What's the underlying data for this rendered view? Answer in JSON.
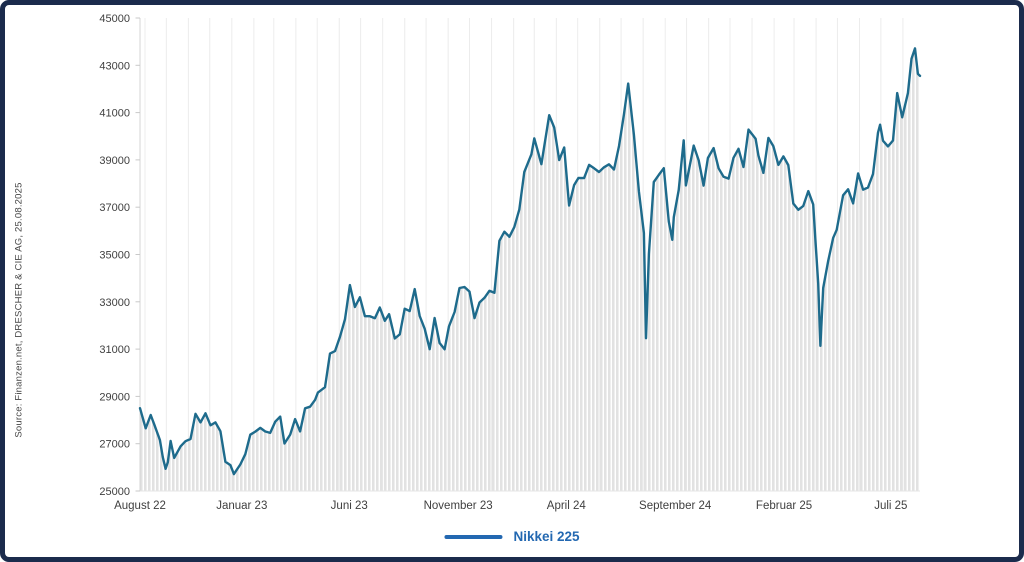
{
  "source_note": "Source: Finanzen.net, DRESCHER & CIE AG, 25.08.2025",
  "legend": {
    "label": "Nikkei 225",
    "position": "bottom-center",
    "swatch_color": "#2368b1",
    "text_color": "#2368b1"
  },
  "colors": {
    "line": "#1e6b8c",
    "area_bars": "#e2e2e2",
    "grid": "#ececec",
    "axis": "#d4d4d4",
    "tick": "#c9c9c9",
    "baseline": "#e6e6e6",
    "tick_text": "#3f3f3f",
    "border": "#1b2b4c",
    "background": "#ffffff"
  },
  "chart_data": {
    "type": "line",
    "title": "",
    "series_name": "Nikkei 225",
    "grid": "vertical-monthly",
    "legend_position": "bottom-center",
    "ylim": [
      25000,
      45000
    ],
    "y_ticks": [
      25000,
      27000,
      29000,
      31000,
      33000,
      35000,
      37000,
      39000,
      41000,
      43000,
      45000
    ],
    "x_range": [
      "2022-08-25",
      "2025-08-25"
    ],
    "x_tick_labels": [
      {
        "date": "2022-08-25",
        "label": "August 22"
      },
      {
        "date": "2023-01-15",
        "label": "Januar 23"
      },
      {
        "date": "2023-06-15",
        "label": "Juni 23"
      },
      {
        "date": "2023-11-15",
        "label": "November 23"
      },
      {
        "date": "2024-04-15",
        "label": "April 24"
      },
      {
        "date": "2024-09-15",
        "label": "September 24"
      },
      {
        "date": "2025-02-15",
        "label": "Februar 25"
      },
      {
        "date": "2025-07-15",
        "label": "Juli 25"
      }
    ],
    "points": [
      [
        "2022-08-25",
        28500
      ],
      [
        "2022-09-02",
        27650
      ],
      [
        "2022-09-09",
        28215
      ],
      [
        "2022-09-14",
        27820
      ],
      [
        "2022-09-22",
        27155
      ],
      [
        "2022-09-26",
        26430
      ],
      [
        "2022-09-30",
        25940
      ],
      [
        "2022-10-03",
        26215
      ],
      [
        "2022-10-07",
        27115
      ],
      [
        "2022-10-12",
        26400
      ],
      [
        "2022-10-21",
        26890
      ],
      [
        "2022-10-28",
        27105
      ],
      [
        "2022-11-04",
        27200
      ],
      [
        "2022-11-11",
        28265
      ],
      [
        "2022-11-18",
        27900
      ],
      [
        "2022-11-25",
        28285
      ],
      [
        "2022-12-02",
        27780
      ],
      [
        "2022-12-09",
        27900
      ],
      [
        "2022-12-16",
        27530
      ],
      [
        "2022-12-23",
        26235
      ],
      [
        "2022-12-30",
        26095
      ],
      [
        "2023-01-04",
        25715
      ],
      [
        "2023-01-13",
        26120
      ],
      [
        "2023-01-20",
        26555
      ],
      [
        "2023-01-27",
        27380
      ],
      [
        "2023-02-03",
        27510
      ],
      [
        "2023-02-10",
        27670
      ],
      [
        "2023-02-17",
        27515
      ],
      [
        "2023-02-24",
        27455
      ],
      [
        "2023-03-03",
        27930
      ],
      [
        "2023-03-10",
        28145
      ],
      [
        "2023-03-16",
        27010
      ],
      [
        "2023-03-24",
        27385
      ],
      [
        "2023-03-31",
        28040
      ],
      [
        "2023-04-07",
        27520
      ],
      [
        "2023-04-14",
        28495
      ],
      [
        "2023-04-21",
        28565
      ],
      [
        "2023-04-28",
        28855
      ],
      [
        "2023-05-02",
        29160
      ],
      [
        "2023-05-12",
        29390
      ],
      [
        "2023-05-19",
        30810
      ],
      [
        "2023-05-26",
        30915
      ],
      [
        "2023-06-02",
        31525
      ],
      [
        "2023-06-09",
        32265
      ],
      [
        "2023-06-16",
        33705
      ],
      [
        "2023-06-23",
        32780
      ],
      [
        "2023-06-30",
        33190
      ],
      [
        "2023-07-07",
        32390
      ],
      [
        "2023-07-14",
        32390
      ],
      [
        "2023-07-21",
        32305
      ],
      [
        "2023-07-28",
        32760
      ],
      [
        "2023-08-04",
        32195
      ],
      [
        "2023-08-10",
        32475
      ],
      [
        "2023-08-18",
        31450
      ],
      [
        "2023-08-25",
        31625
      ],
      [
        "2023-09-01",
        32710
      ],
      [
        "2023-09-08",
        32605
      ],
      [
        "2023-09-15",
        33535
      ],
      [
        "2023-09-22",
        32400
      ],
      [
        "2023-09-29",
        31860
      ],
      [
        "2023-10-06",
        30995
      ],
      [
        "2023-10-13",
        32315
      ],
      [
        "2023-10-20",
        31260
      ],
      [
        "2023-10-27",
        30990
      ],
      [
        "2023-11-02",
        31950
      ],
      [
        "2023-11-10",
        32570
      ],
      [
        "2023-11-17",
        33585
      ],
      [
        "2023-11-24",
        33625
      ],
      [
        "2023-12-01",
        33430
      ],
      [
        "2023-12-08",
        32310
      ],
      [
        "2023-12-15",
        32970
      ],
      [
        "2023-12-22",
        33170
      ],
      [
        "2023-12-29",
        33465
      ],
      [
        "2024-01-05",
        33380
      ],
      [
        "2024-01-12",
        35580
      ],
      [
        "2024-01-19",
        35965
      ],
      [
        "2024-01-26",
        35750
      ],
      [
        "2024-02-02",
        36160
      ],
      [
        "2024-02-09",
        36900
      ],
      [
        "2024-02-16",
        38490
      ],
      [
        "2024-02-26",
        39235
      ],
      [
        "2024-03-01",
        39910
      ],
      [
        "2024-03-11",
        38820
      ],
      [
        "2024-03-22",
        40890
      ],
      [
        "2024-03-29",
        40370
      ],
      [
        "2024-04-05",
        38990
      ],
      [
        "2024-04-12",
        39525
      ],
      [
        "2024-04-19",
        37070
      ],
      [
        "2024-04-26",
        37935
      ],
      [
        "2024-05-02",
        38235
      ],
      [
        "2024-05-10",
        38230
      ],
      [
        "2024-05-17",
        38790
      ],
      [
        "2024-05-24",
        38645
      ],
      [
        "2024-05-31",
        38490
      ],
      [
        "2024-06-07",
        38685
      ],
      [
        "2024-06-14",
        38815
      ],
      [
        "2024-06-21",
        38595
      ],
      [
        "2024-06-28",
        39585
      ],
      [
        "2024-07-05",
        40910
      ],
      [
        "2024-07-11",
        42225
      ],
      [
        "2024-07-19",
        40065
      ],
      [
        "2024-07-26",
        37670
      ],
      [
        "2024-08-02",
        35910
      ],
      [
        "2024-08-05",
        31460
      ],
      [
        "2024-08-09",
        35025
      ],
      [
        "2024-08-16",
        38065
      ],
      [
        "2024-08-23",
        38365
      ],
      [
        "2024-08-30",
        38650
      ],
      [
        "2024-09-06",
        36390
      ],
      [
        "2024-09-11",
        35620
      ],
      [
        "2024-09-13",
        36580
      ],
      [
        "2024-09-20",
        37725
      ],
      [
        "2024-09-27",
        39830
      ],
      [
        "2024-09-30",
        37920
      ],
      [
        "2024-10-11",
        39605
      ],
      [
        "2024-10-18",
        38980
      ],
      [
        "2024-10-25",
        37915
      ],
      [
        "2024-10-31",
        39080
      ],
      [
        "2024-11-08",
        39500
      ],
      [
        "2024-11-15",
        38645
      ],
      [
        "2024-11-22",
        38285
      ],
      [
        "2024-11-29",
        38210
      ],
      [
        "2024-12-06",
        39090
      ],
      [
        "2024-12-13",
        39470
      ],
      [
        "2024-12-20",
        38700
      ],
      [
        "2024-12-27",
        40280
      ],
      [
        "2025-01-06",
        39895
      ],
      [
        "2025-01-10",
        39190
      ],
      [
        "2025-01-17",
        38450
      ],
      [
        "2025-01-24",
        39930
      ],
      [
        "2025-01-31",
        39575
      ],
      [
        "2025-02-07",
        38790
      ],
      [
        "2025-02-14",
        39150
      ],
      [
        "2025-02-21",
        38780
      ],
      [
        "2025-02-28",
        37155
      ],
      [
        "2025-03-07",
        36890
      ],
      [
        "2025-03-14",
        37055
      ],
      [
        "2025-03-21",
        37680
      ],
      [
        "2025-03-28",
        37120
      ],
      [
        "2025-03-31",
        35620
      ],
      [
        "2025-04-04",
        33780
      ],
      [
        "2025-04-07",
        31140
      ],
      [
        "2025-04-11",
        33585
      ],
      [
        "2025-04-18",
        34730
      ],
      [
        "2025-04-25",
        35705
      ],
      [
        "2025-04-30",
        36045
      ],
      [
        "2025-05-09",
        37505
      ],
      [
        "2025-05-16",
        37755
      ],
      [
        "2025-05-23",
        37160
      ],
      [
        "2025-05-30",
        38430
      ],
      [
        "2025-06-06",
        37740
      ],
      [
        "2025-06-13",
        37835
      ],
      [
        "2025-06-20",
        38400
      ],
      [
        "2025-06-27",
        40150
      ],
      [
        "2025-06-30",
        40490
      ],
      [
        "2025-07-04",
        39810
      ],
      [
        "2025-07-11",
        39570
      ],
      [
        "2025-07-18",
        39820
      ],
      [
        "2025-07-24",
        41825
      ],
      [
        "2025-07-31",
        40800
      ],
      [
        "2025-08-08",
        41820
      ],
      [
        "2025-08-13",
        43275
      ],
      [
        "2025-08-18",
        43715
      ],
      [
        "2025-08-22",
        42635
      ],
      [
        "2025-08-25",
        42550
      ]
    ]
  }
}
